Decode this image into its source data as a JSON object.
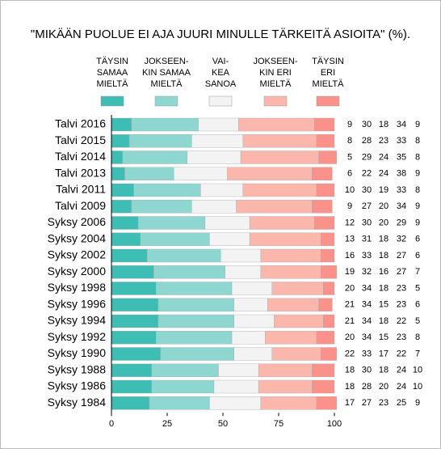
{
  "chart_data": {
    "type": "stacked-bar-horizontal",
    "title": "\"MIKÄÄN PUOLUE EI AJA JUURI MINULLE TÄRKEITÄ ASIOITA\" (%).",
    "categories": [
      "Talvi 2016",
      "Talvi 2015",
      "Talvi 2014",
      "Talvi 2013",
      "Talvi 2011",
      "Talvi 2009",
      "Syksy 2006",
      "Syksy 2004",
      "Syksy 2002",
      "Syksy 2000",
      "Syksy 1998",
      "Syksy 1996",
      "Syksy 1994",
      "Syksy 1992",
      "Syksy 1990",
      "Syksy 1988",
      "Syksy 1986",
      "Syksy 1984"
    ],
    "series": [
      {
        "name": "TÄYSIN\nSAMAA\nMIELTÄ",
        "color": "#3dbdb3",
        "values": [
          9,
          8,
          5,
          6,
          10,
          9,
          12,
          13,
          16,
          19,
          20,
          21,
          21,
          20,
          22,
          18,
          18,
          17
        ]
      },
      {
        "name": "JOKSEEN-\nKIN SAMAA\nMIELTÄ",
        "color": "#8ed7d1",
        "values": [
          30,
          28,
          29,
          22,
          30,
          27,
          30,
          31,
          33,
          32,
          34,
          34,
          34,
          34,
          33,
          30,
          28,
          27
        ]
      },
      {
        "name": "VAI-\nKEA\nSANOA",
        "color": "#f3f3f3",
        "values": [
          18,
          23,
          24,
          24,
          19,
          20,
          20,
          18,
          18,
          16,
          18,
          15,
          18,
          15,
          17,
          18,
          20,
          23
        ]
      },
      {
        "name": "JOKSEEN-\nKIN ERI\nMIELTÄ",
        "color": "#fcb7ad",
        "values": [
          34,
          33,
          35,
          38,
          33,
          34,
          29,
          32,
          27,
          27,
          23,
          23,
          22,
          23,
          22,
          24,
          24,
          25
        ]
      },
      {
        "name": "TÄYSIN\nERI\nMIELTÄ",
        "color": "#fa918a",
        "values": [
          9,
          8,
          8,
          9,
          8,
          9,
          9,
          6,
          6,
          7,
          5,
          6,
          5,
          8,
          7,
          10,
          10,
          9
        ]
      }
    ],
    "xlim": [
      0,
      100
    ],
    "xticks": [
      0,
      25,
      50,
      75,
      100
    ]
  }
}
